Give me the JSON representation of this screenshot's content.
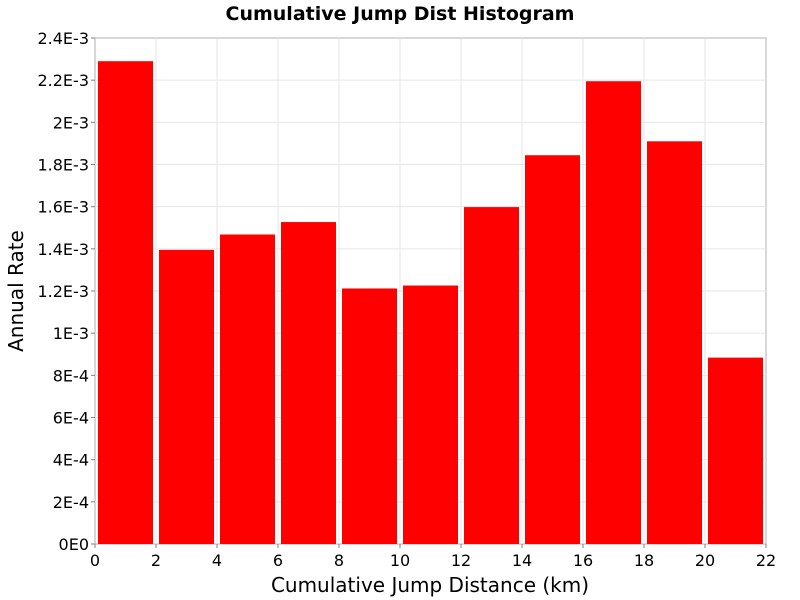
{
  "chart_data": {
    "type": "bar",
    "title": "Cumulative Jump Dist Histogram",
    "xlabel": "Cumulative Jump Distance (km)",
    "ylabel": "Annual Rate",
    "xlim": [
      0,
      22
    ],
    "ylim": [
      0,
      0.0024
    ],
    "x_ticks": [
      "0",
      "2",
      "4",
      "6",
      "8",
      "10",
      "12",
      "14",
      "16",
      "18",
      "20",
      "22"
    ],
    "y_ticks": [
      "0E0",
      "2E-4",
      "4E-4",
      "6E-4",
      "8E-4",
      "1E-3",
      "1.2E-3",
      "1.4E-3",
      "1.6E-3",
      "1.8E-3",
      "2E-3",
      "2.2E-3",
      "2.4E-3"
    ],
    "bin_width": 2,
    "bin_starts": [
      0,
      2,
      4,
      6,
      8,
      10,
      12,
      14,
      16,
      18,
      20
    ],
    "values": [
      0.00229,
      0.001395,
      0.001468,
      0.001527,
      0.001212,
      0.001226,
      0.001598,
      0.001844,
      0.002195,
      0.00191,
      0.000884
    ],
    "bar_color": "#ff0000",
    "grid": true
  }
}
